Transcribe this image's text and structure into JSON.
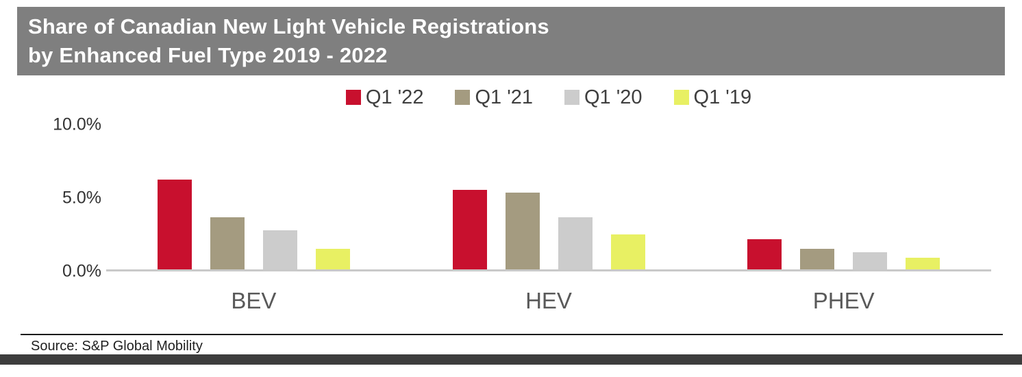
{
  "title": {
    "line1": "Share of Canadian New Light Vehicle Registrations",
    "line2": "by Enhanced Fuel Type 2019 - 2022"
  },
  "source": "Source: S&P Global Mobility",
  "colors": {
    "title_bar_bg": "#7F7F7F",
    "title_text": "#FFFFFF",
    "footer_bar": "#3D3D3D",
    "baseline": "#C9C9C9",
    "axis_text": "#333333",
    "category_text": "#595959"
  },
  "chart_data": {
    "type": "bar",
    "title": "Share of Canadian New Light Vehicle Registrations by Enhanced Fuel Type 2019 - 2022",
    "categories": [
      "BEV",
      "HEV",
      "PHEV"
    ],
    "series": [
      {
        "name": "Q1 '22",
        "color": "#C8102E",
        "values": [
          6.2,
          5.5,
          2.1
        ]
      },
      {
        "name": "Q1 '21",
        "color": "#A49B80",
        "values": [
          3.6,
          5.3,
          1.4
        ]
      },
      {
        "name": "Q1 '20",
        "color": "#CCCCCC",
        "values": [
          2.7,
          3.6,
          1.2
        ]
      },
      {
        "name": "Q1 '19",
        "color": "#E8F063",
        "values": [
          1.4,
          2.4,
          0.8
        ]
      }
    ],
    "xlabel": "",
    "ylabel": "",
    "ylim": [
      0,
      10
    ],
    "yticks": [
      "10.0%",
      "5.0%",
      "0.0%"
    ],
    "ytick_values": [
      10,
      5,
      0
    ],
    "grid": false,
    "legend_position": "top"
  }
}
